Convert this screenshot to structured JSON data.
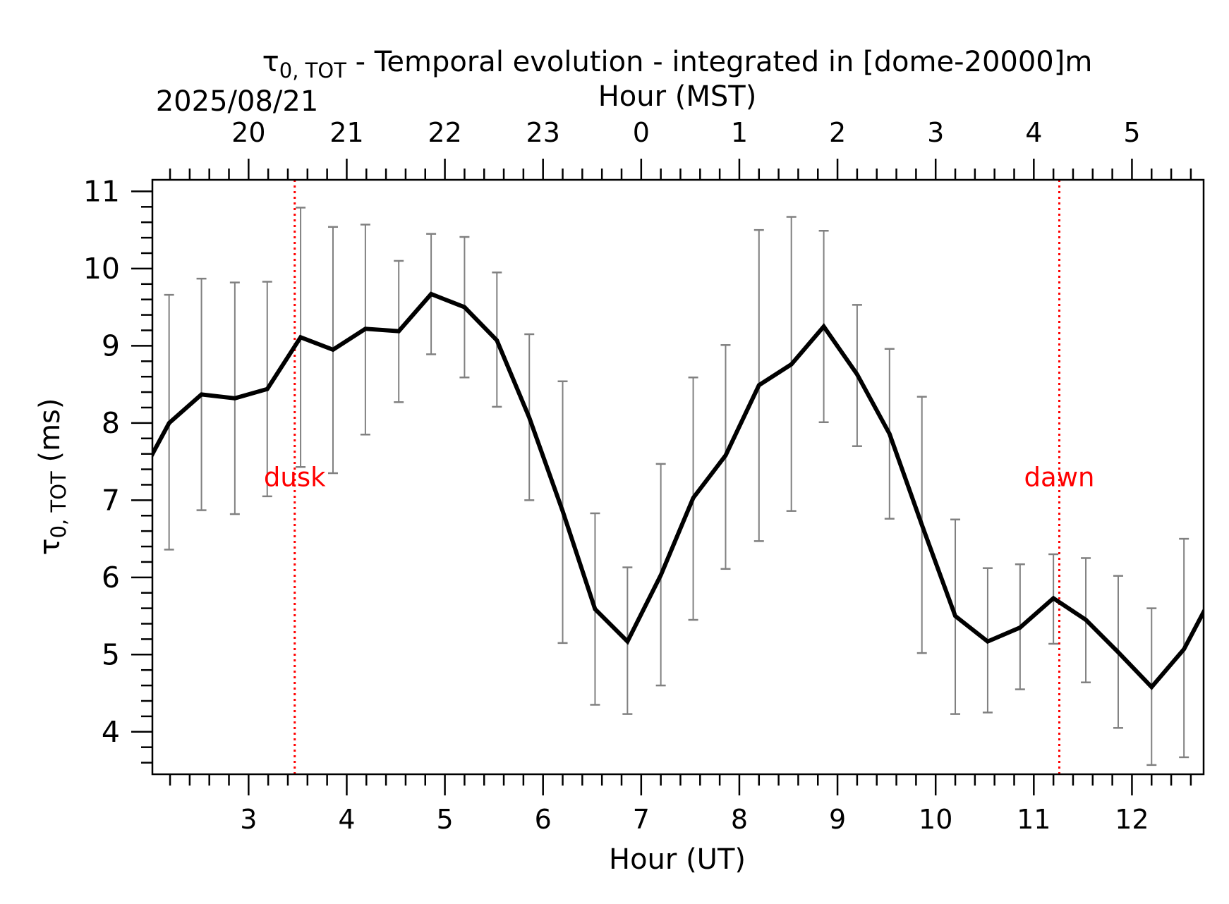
{
  "chart_data": {
    "type": "line",
    "title_symbol": "τ",
    "title_subscript": "0, TOT",
    "title_rest": " - Temporal evolution - integrated in [dome-20000]m",
    "date": "2025/08/21",
    "xlabel": "Hour (UT)",
    "xlabel_top": "Hour (MST)",
    "ylabel_symbol": "τ",
    "ylabel_subscript": "0, TOT",
    "ylabel_rest": " (ms)",
    "xlim": [
      2.02,
      12.73
    ],
    "ylim": [
      3.45,
      11.15
    ],
    "x_ticks": [
      "3",
      "4",
      "5",
      "6",
      "7",
      "8",
      "9",
      "10",
      "11",
      "12"
    ],
    "x_tick_values": [
      3,
      4,
      5,
      6,
      7,
      8,
      9,
      10,
      11,
      12
    ],
    "top_ticks": [
      "20",
      "21",
      "22",
      "23",
      "0",
      "1",
      "2",
      "3",
      "4",
      "5"
    ],
    "y_ticks": [
      "4",
      "5",
      "6",
      "7",
      "8",
      "9",
      "10",
      "11"
    ],
    "y_tick_values": [
      4,
      5,
      6,
      7,
      8,
      9,
      10,
      11
    ],
    "grid": false,
    "line_color": "#000000",
    "errorbar_color": "#808080",
    "event_color": "#ff0000",
    "series": [
      {
        "x": [
          2.0,
          2.19,
          2.52,
          2.86,
          3.19,
          3.53,
          3.86,
          4.19,
          4.53,
          4.86,
          5.2,
          5.53,
          5.86,
          6.2,
          6.53,
          6.86,
          7.2,
          7.53,
          7.86,
          8.2,
          8.53,
          8.86,
          9.2,
          9.53,
          9.86,
          10.2,
          10.53,
          10.86,
          11.2,
          11.53,
          11.86,
          12.2,
          12.53,
          12.75
        ],
        "y": [
          7.55,
          8.0,
          8.37,
          8.32,
          8.44,
          9.11,
          8.95,
          9.22,
          9.19,
          9.67,
          9.5,
          9.07,
          8.07,
          6.86,
          5.59,
          5.17,
          6.03,
          7.03,
          7.58,
          8.49,
          8.76,
          9.25,
          8.63,
          7.86,
          6.68,
          5.5,
          5.17,
          5.35,
          5.73,
          5.45,
          5.03,
          4.58,
          5.07,
          5.6
        ],
        "err_x": [
          2.19,
          2.52,
          2.86,
          3.19,
          3.53,
          3.86,
          4.19,
          4.53,
          4.86,
          5.2,
          5.53,
          5.86,
          6.2,
          6.53,
          6.86,
          7.2,
          7.53,
          7.86,
          8.2,
          8.53,
          8.86,
          9.2,
          9.53,
          9.86,
          10.2,
          10.53,
          10.86,
          11.2,
          11.53,
          11.86,
          12.2,
          12.53
        ],
        "err_low": [
          6.36,
          6.87,
          6.82,
          7.05,
          7.43,
          7.35,
          7.85,
          8.27,
          8.89,
          8.59,
          8.21,
          7.0,
          5.15,
          4.35,
          4.23,
          4.6,
          5.45,
          6.11,
          6.47,
          6.86,
          8.01,
          7.7,
          6.76,
          5.02,
          4.23,
          4.25,
          4.55,
          5.14,
          4.64,
          4.05,
          3.57,
          3.67
        ],
        "err_high": [
          9.66,
          9.87,
          9.82,
          9.83,
          10.79,
          10.54,
          10.57,
          10.1,
          10.45,
          10.41,
          9.95,
          9.15,
          8.54,
          6.83,
          6.13,
          7.47,
          8.59,
          9.01,
          10.5,
          10.67,
          10.49,
          9.53,
          8.96,
          8.34,
          6.75,
          6.12,
          6.17,
          6.3,
          6.25,
          6.02,
          5.6,
          6.5
        ]
      }
    ],
    "events": [
      {
        "label": "dusk",
        "x": 3.47
      },
      {
        "label": "dawn",
        "x": 11.26
      }
    ]
  }
}
